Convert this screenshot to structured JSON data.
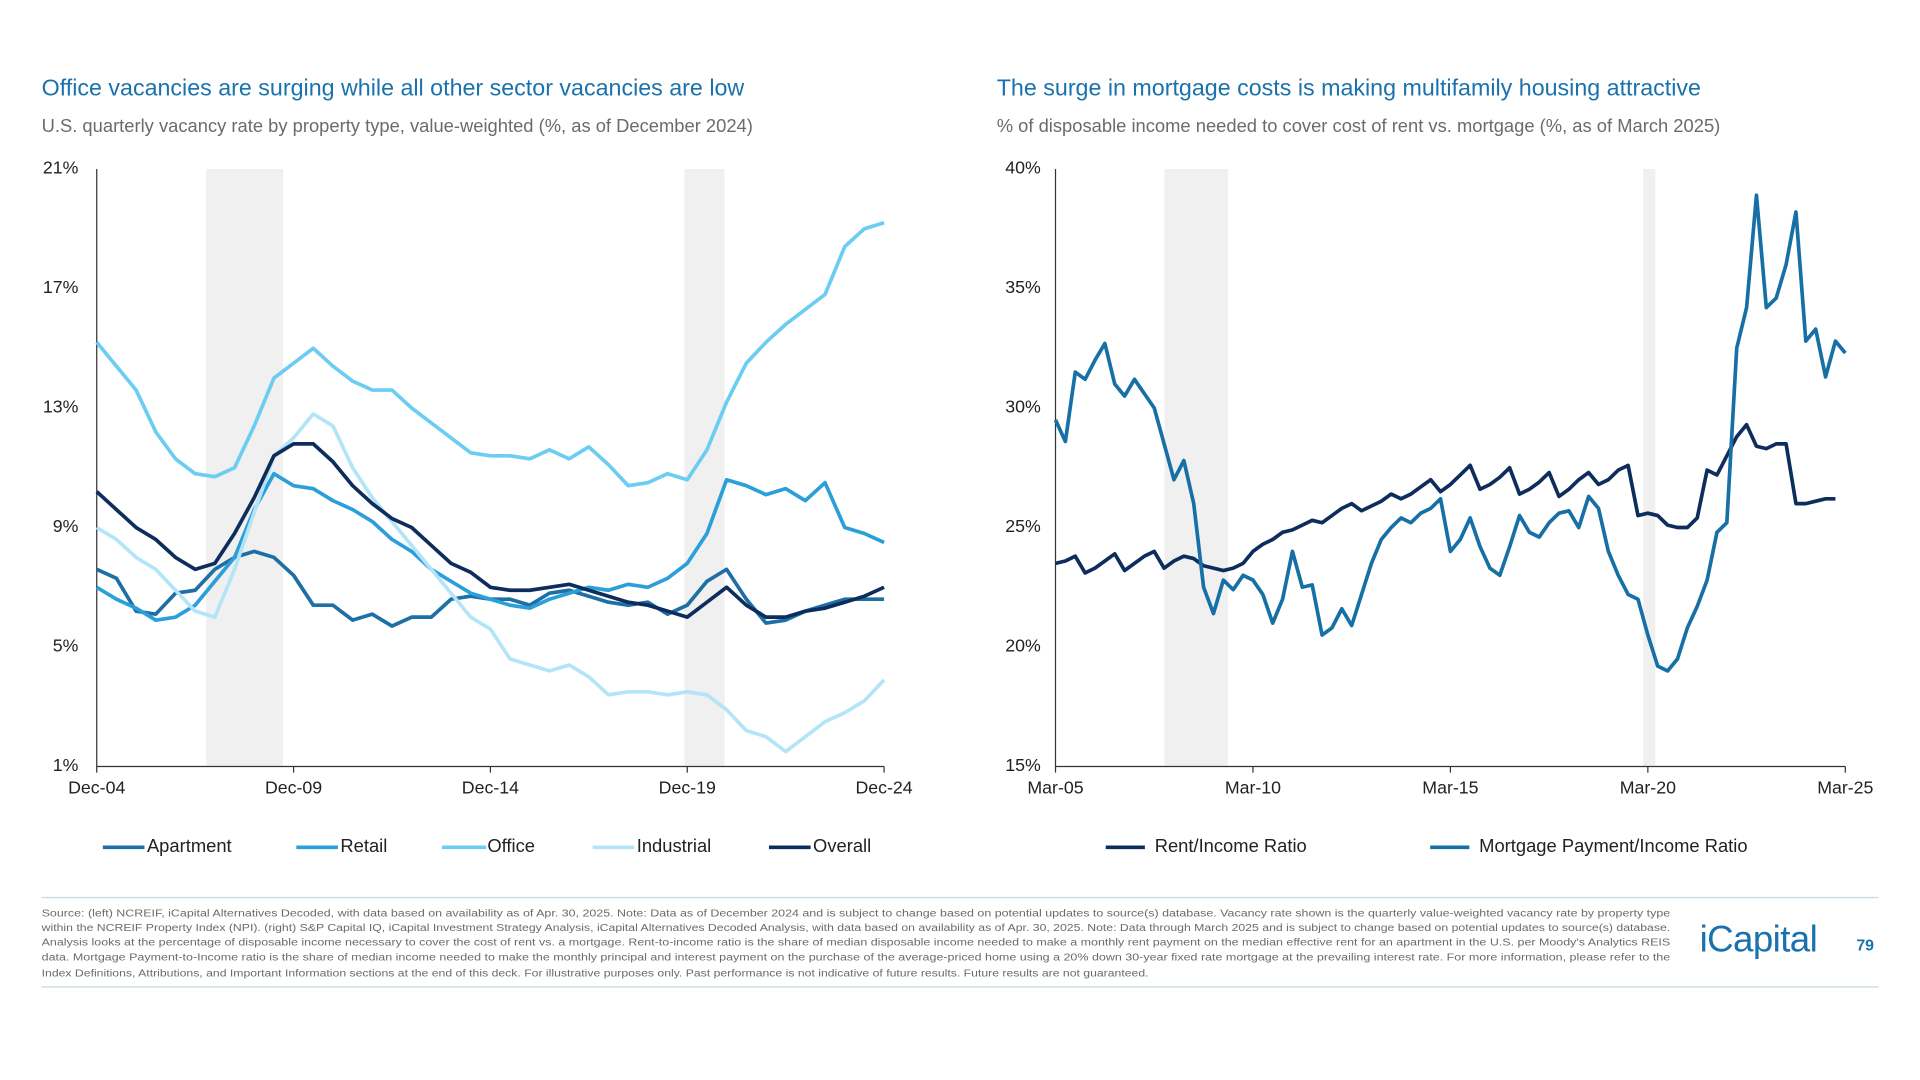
{
  "chart_data": [
    {
      "type": "line",
      "title": "Office vacancies are surging while all other sector vacancies are low",
      "subtitle": "U.S. quarterly vacancy rate by property type, value-weighted (%, as of December 2024)",
      "x": [
        2004.92,
        2005.42,
        2005.92,
        2006.42,
        2006.92,
        2007.42,
        2007.92,
        2008.42,
        2008.92,
        2009.42,
        2009.92,
        2010.42,
        2010.92,
        2011.42,
        2011.92,
        2012.42,
        2012.92,
        2013.42,
        2013.92,
        2014.42,
        2014.92,
        2015.42,
        2015.92,
        2016.42,
        2016.92,
        2017.42,
        2017.92,
        2018.42,
        2018.92,
        2019.42,
        2019.92,
        2020.42,
        2020.92,
        2021.42,
        2021.92,
        2022.42,
        2022.92,
        2023.42,
        2023.92,
        2024.42,
        2024.92
      ],
      "xlim": [
        2004.92,
        2024.92
      ],
      "xticks": [
        {
          "value": 2004.92,
          "label": "Dec-04"
        },
        {
          "value": 2009.92,
          "label": "Dec-09"
        },
        {
          "value": 2014.92,
          "label": "Dec-14"
        },
        {
          "value": 2019.92,
          "label": "Dec-19"
        },
        {
          "value": 2024.92,
          "label": "Dec-24"
        }
      ],
      "ylim": [
        1,
        21
      ],
      "yticks": [
        {
          "value": 1,
          "label": "1%"
        },
        {
          "value": 5,
          "label": "5%"
        },
        {
          "value": 9,
          "label": "9%"
        },
        {
          "value": 13,
          "label": "13%"
        },
        {
          "value": 17,
          "label": "17%"
        },
        {
          "value": 21,
          "label": "21%"
        }
      ],
      "grid": false,
      "legend": "bottom",
      "shaded": [
        [
          2007.7,
          2009.65
        ],
        [
          2019.85,
          2020.87
        ]
      ],
      "series": [
        {
          "name": "Apartment",
          "color": "#1d6fa5",
          "values": [
            7.6,
            7.3,
            6.2,
            6.1,
            6.8,
            6.9,
            7.6,
            8.0,
            8.2,
            8.0,
            7.4,
            6.4,
            6.4,
            5.9,
            6.1,
            5.7,
            6.0,
            6.0,
            6.6,
            6.7,
            6.6,
            6.6,
            6.4,
            6.8,
            6.9,
            6.7,
            6.5,
            6.4,
            6.5,
            6.1,
            6.4,
            7.2,
            7.6,
            6.6,
            5.8,
            5.9,
            6.2,
            6.4,
            6.6,
            6.6,
            6.6
          ]
        },
        {
          "name": "Retail",
          "color": "#2b9fd9",
          "values": [
            7.0,
            6.6,
            6.3,
            5.9,
            6.0,
            6.4,
            7.2,
            8.0,
            9.6,
            10.8,
            10.4,
            10.3,
            9.9,
            9.6,
            9.2,
            8.6,
            8.2,
            7.6,
            7.2,
            6.8,
            6.6,
            6.4,
            6.3,
            6.6,
            6.8,
            7.0,
            6.9,
            7.1,
            7.0,
            7.3,
            7.8,
            8.8,
            10.6,
            10.4,
            10.1,
            10.3,
            9.9,
            10.5,
            9.0,
            8.8,
            8.5
          ]
        },
        {
          "name": "Office",
          "color": "#6ccdf2",
          "values": [
            15.2,
            14.4,
            13.6,
            12.2,
            11.3,
            10.8,
            10.7,
            11.0,
            12.4,
            14.0,
            14.5,
            15.0,
            14.4,
            13.9,
            13.6,
            13.6,
            13.0,
            12.5,
            12.0,
            11.5,
            11.4,
            11.4,
            11.3,
            11.6,
            11.3,
            11.7,
            11.1,
            10.4,
            10.5,
            10.8,
            10.6,
            11.6,
            13.2,
            14.5,
            15.2,
            15.8,
            16.3,
            16.8,
            18.4,
            19.0,
            19.2
          ]
        },
        {
          "name": "Industrial",
          "color": "#b3e4f7",
          "values": [
            9.0,
            8.6,
            8.0,
            7.6,
            6.9,
            6.2,
            6.0,
            7.6,
            9.5,
            11.4,
            12.0,
            12.8,
            12.4,
            11.0,
            10.0,
            9.2,
            8.4,
            7.6,
            6.8,
            6.0,
            5.6,
            4.6,
            4.4,
            4.2,
            4.4,
            4.0,
            3.4,
            3.5,
            3.5,
            3.4,
            3.5,
            3.4,
            2.9,
            2.2,
            2.0,
            1.5,
            2.0,
            2.5,
            2.8,
            3.2,
            3.9
          ]
        },
        {
          "name": "Overall",
          "color": "#0d2d5c",
          "values": [
            10.2,
            9.6,
            9.0,
            8.6,
            8.0,
            7.6,
            7.8,
            8.8,
            10.0,
            11.4,
            11.8,
            11.8,
            11.2,
            10.4,
            9.8,
            9.3,
            9.0,
            8.4,
            7.8,
            7.5,
            7.0,
            6.9,
            6.9,
            7.0,
            7.1,
            6.9,
            6.7,
            6.5,
            6.4,
            6.2,
            6.0,
            6.5,
            7.0,
            6.4,
            6.0,
            6.0,
            6.2,
            6.3,
            6.5,
            6.7,
            7.0
          ]
        }
      ]
    },
    {
      "type": "line",
      "title": "The surge in mortgage costs is making multifamily housing attractive",
      "subtitle": "% of disposable income needed to cover cost of rent vs. mortgage (%, as of March 2025)",
      "x": [
        2005.17,
        2005.42,
        2005.67,
        2005.92,
        2006.17,
        2006.42,
        2006.67,
        2006.92,
        2007.17,
        2007.42,
        2007.67,
        2007.92,
        2008.17,
        2008.42,
        2008.67,
        2008.92,
        2009.17,
        2009.42,
        2009.67,
        2009.92,
        2010.17,
        2010.42,
        2010.67,
        2010.92,
        2011.17,
        2011.42,
        2011.67,
        2011.92,
        2012.17,
        2012.42,
        2012.67,
        2012.92,
        2013.17,
        2013.42,
        2013.67,
        2013.92,
        2014.17,
        2014.42,
        2014.67,
        2014.92,
        2015.17,
        2015.42,
        2015.67,
        2015.92,
        2016.17,
        2016.42,
        2016.67,
        2016.92,
        2017.17,
        2017.42,
        2017.67,
        2017.92,
        2018.17,
        2018.42,
        2018.67,
        2018.92,
        2019.17,
        2019.42,
        2019.67,
        2019.92,
        2020.17,
        2020.42,
        2020.67,
        2020.92,
        2021.17,
        2021.42,
        2021.67,
        2021.92,
        2022.17,
        2022.42,
        2022.67,
        2022.92,
        2023.17,
        2023.42,
        2023.67,
        2023.92,
        2024.17,
        2024.42,
        2024.67,
        2024.92,
        2025.17
      ],
      "xlim": [
        2005.17,
        2025.17
      ],
      "xticks": [
        {
          "value": 2005.17,
          "label": "Mar-05"
        },
        {
          "value": 2010.17,
          "label": "Mar-10"
        },
        {
          "value": 2015.17,
          "label": "Mar-15"
        },
        {
          "value": 2020.17,
          "label": "Mar-20"
        },
        {
          "value": 2025.17,
          "label": "Mar-25"
        }
      ],
      "ylim": [
        15,
        40
      ],
      "yticks": [
        {
          "value": 15,
          "label": "15%"
        },
        {
          "value": 20,
          "label": "20%"
        },
        {
          "value": 25,
          "label": "25%"
        },
        {
          "value": 30,
          "label": "30%"
        },
        {
          "value": 35,
          "label": "35%"
        },
        {
          "value": 40,
          "label": "40%"
        }
      ],
      "grid": false,
      "legend": "bottom",
      "shaded": [
        [
          2007.93,
          2009.54
        ],
        [
          2020.05,
          2020.36
        ]
      ],
      "series": [
        {
          "name": "Rent/Income Ratio",
          "color": "#0d2d5c",
          "values": [
            23.5,
            23.6,
            23.8,
            23.1,
            23.3,
            23.6,
            23.9,
            23.2,
            23.5,
            23.8,
            24.0,
            23.3,
            23.6,
            23.8,
            23.7,
            23.4,
            23.3,
            23.2,
            23.3,
            23.5,
            24.0,
            24.3,
            24.5,
            24.8,
            24.9,
            25.1,
            25.3,
            25.2,
            25.5,
            25.8,
            26.0,
            25.7,
            25.9,
            26.1,
            26.4,
            26.2,
            26.4,
            26.7,
            27.0,
            26.5,
            26.8,
            27.2,
            27.6,
            26.6,
            26.8,
            27.1,
            27.5,
            26.4,
            26.6,
            26.9,
            27.3,
            26.3,
            26.6,
            27.0,
            27.3,
            26.8,
            27.0,
            27.4,
            27.6,
            25.5,
            25.6,
            25.5,
            25.1,
            25.0,
            25.0,
            25.4,
            27.4,
            27.2,
            28.0,
            28.8,
            29.3,
            28.4,
            28.3,
            28.5,
            28.5,
            26.0,
            26.0,
            26.1,
            26.2,
            26.2,
            null
          ]
        },
        {
          "name": "Mortgage Payment/Income Ratio",
          "color": "#1670a6",
          "values": [
            29.5,
            28.6,
            31.5,
            31.2,
            32.0,
            32.7,
            31.0,
            30.5,
            31.2,
            30.6,
            30.0,
            28.5,
            27.0,
            27.8,
            26.0,
            22.5,
            21.4,
            22.8,
            22.4,
            23.0,
            22.8,
            22.2,
            21.0,
            22.0,
            24.0,
            22.5,
            22.6,
            20.5,
            20.8,
            21.6,
            20.9,
            22.2,
            23.5,
            24.5,
            25.0,
            25.4,
            25.2,
            25.6,
            25.8,
            26.2,
            24.0,
            24.5,
            25.4,
            24.2,
            23.3,
            23.0,
            24.2,
            25.5,
            24.8,
            24.6,
            25.2,
            25.6,
            25.7,
            25.0,
            26.3,
            25.8,
            24.0,
            23.0,
            22.2,
            22.0,
            20.5,
            19.2,
            19.0,
            19.5,
            20.8,
            21.7,
            22.8,
            24.8,
            25.2,
            32.5,
            34.2,
            38.9,
            34.2,
            34.6,
            36.0,
            38.2,
            32.8,
            33.3,
            31.3,
            32.8,
            32.3
          ]
        }
      ]
    }
  ],
  "footer": {
    "source_lines": [
      "Source: (left) NCREIF, iCapital Alternatives Decoded, with data based on availability as of Apr. 30, 2025. Note: Data as of December 2024 and is subject to change based on potential updates to source(s) database. Vacancy rate shown is the quarterly value-weighted vacancy rate by property type",
      "within the NCREIF Property Index (NPI). (right) S&P Capital IQ, iCapital Investment Strategy Analysis, iCapital Alternatives Decoded Analysis, with data based on availability as of Apr. 30, 2025. Note: Data through March 2025 and is subject to change based on potential updates to source(s) database.",
      "Analysis looks at the percentage of disposable income necessary to cover the cost of rent vs. a mortgage. Rent-to-income ratio is the share of median disposable income needed to make a monthly rent payment on the median effective rent for an apartment in the U.S. per Moody's Analytics REIS",
      "data. Mortgage Payment-to-Income ratio is the share of median income needed to make the monthly principal and interest payment on the purchase of the average-priced home using a 20% down 30-year fixed rate mortgage at the prevailing interest rate. For more information, please refer to the",
      "Index Definitions, Attributions, and Important Information sections at the end of this deck. For illustrative purposes only. Past performance is not indicative of future results. Future results are not guaranteed."
    ],
    "logo": "iCapital",
    "page_number": 79
  }
}
